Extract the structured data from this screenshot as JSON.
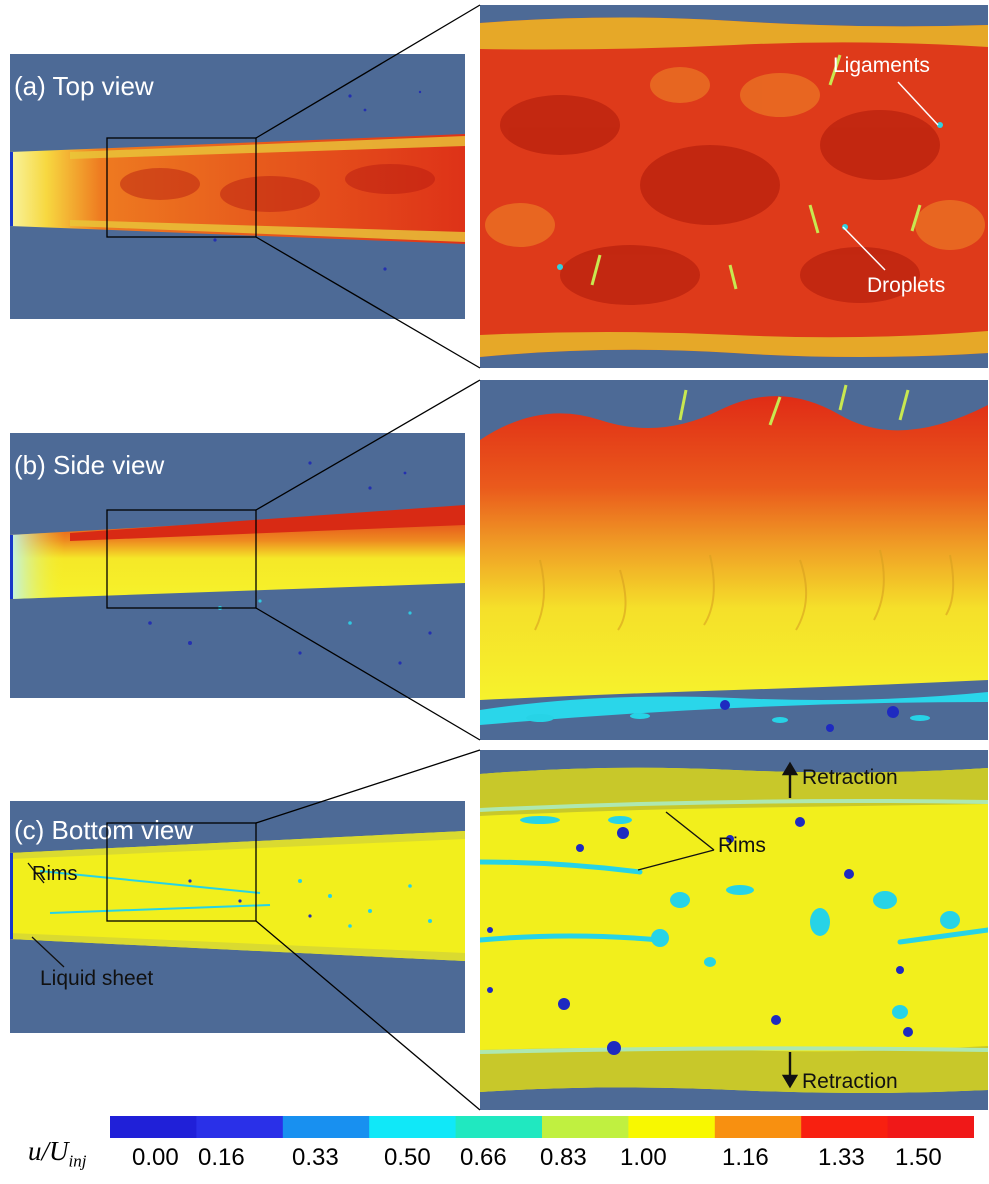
{
  "panels": {
    "top": {
      "label": "(a) Top view"
    },
    "side": {
      "label": "(b) Side view"
    },
    "bottom": {
      "label": "(c) Bottom view"
    }
  },
  "annotations": {
    "ligaments": "Ligaments",
    "droplets": "Droplets",
    "rims_left": "Rims",
    "liquid_sheet": "Liquid sheet",
    "rims_zoom": "Rims",
    "retraction_top": "Retraction",
    "retraction_bottom": "Retraction"
  },
  "colorbar": {
    "variable": "u/U",
    "subscript": "inj",
    "ticks": [
      "0.00",
      "0.16",
      "0.33",
      "0.50",
      "0.66",
      "0.83",
      "1.00",
      "1.16",
      "1.33",
      "1.50"
    ],
    "colors": [
      "#2020d8",
      "#2a30e8",
      "#1890f0",
      "#10e8f8",
      "#20e8c0",
      "#c0f040",
      "#f8f800",
      "#f89010",
      "#f82010",
      "#f01818"
    ]
  },
  "colors": {
    "background_panel": "#4d6a96",
    "liquid_fast": "#e23a1a",
    "liquid_unit": "#f2ef1c",
    "liquid_slow": "#27d3e6"
  }
}
